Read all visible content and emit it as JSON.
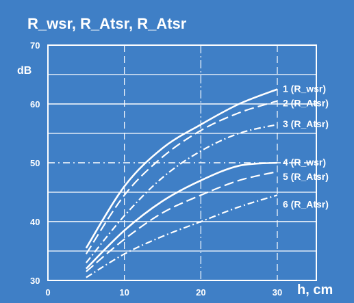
{
  "chart_data": {
    "type": "line",
    "title": "R_wsr, R_Atsr, R_Atsr",
    "ylabel": "dB",
    "xlabel": "h, cm",
    "xlim": [
      0,
      30
    ],
    "ylim": [
      30,
      70
    ],
    "xticks": [
      "0",
      "10",
      "20",
      "30"
    ],
    "yticks": [
      "30",
      "40",
      "50",
      "60",
      "70"
    ],
    "grid": true,
    "colors": {
      "background": "#3f7fc6",
      "foreground": "#ffffff"
    },
    "series": [
      {
        "name": "1 (R_wsr)",
        "style": "solid",
        "x": [
          5,
          10,
          15,
          20,
          25,
          30
        ],
        "y": [
          35.5,
          46,
          52.5,
          56.5,
          60,
          62.5
        ]
      },
      {
        "name": "2 (R_Atsr)",
        "style": "dashed",
        "x": [
          5,
          10,
          15,
          20,
          25,
          30
        ],
        "y": [
          34.5,
          44.5,
          51,
          55.5,
          58.5,
          60.5
        ]
      },
      {
        "name": "3 (R_Atsr)",
        "style": "dashdot",
        "x": [
          5,
          10,
          15,
          20,
          25,
          30
        ],
        "y": [
          33,
          41,
          47.5,
          52,
          55,
          56.5
        ]
      },
      {
        "name": "4 (R_wsr)",
        "style": "solid",
        "x": [
          5,
          10,
          15,
          20,
          25,
          30
        ],
        "y": [
          32,
          38.5,
          43.5,
          47,
          49.5,
          50
        ]
      },
      {
        "name": "5 (R_Atsr)",
        "style": "dashed",
        "x": [
          5,
          10,
          15,
          20,
          25,
          30
        ],
        "y": [
          31.5,
          37,
          41.5,
          44.5,
          47,
          48.5
        ]
      },
      {
        "name": "6 (R_Atsr)",
        "style": "dashdot",
        "x": [
          5,
          10,
          15,
          20,
          25,
          30
        ],
        "y": [
          30.5,
          34.5,
          37.5,
          40,
          42.5,
          44.5
        ]
      }
    ]
  }
}
